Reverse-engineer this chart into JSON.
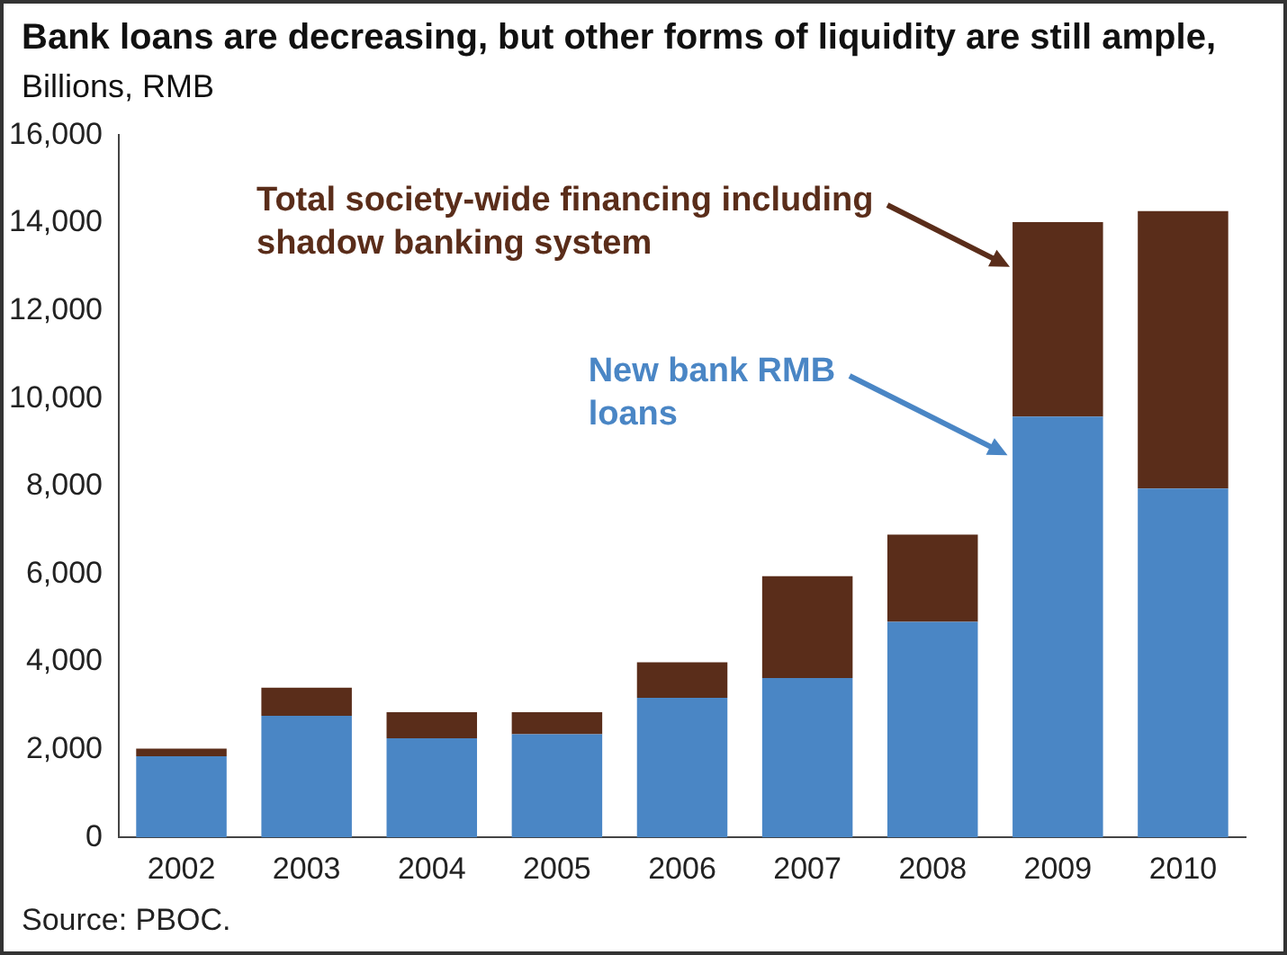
{
  "chart_data": {
    "type": "bar",
    "title": "Bank loans are decreasing, but other forms of liquidity are still ample,",
    "subtitle": "Billions, RMB",
    "categories": [
      "2002",
      "2003",
      "2004",
      "2005",
      "2006",
      "2007",
      "2008",
      "2009",
      "2010"
    ],
    "series": [
      {
        "name": "New bank RMB loans",
        "color": "#4a86c5",
        "values": [
          1850,
          2770,
          2260,
          2350,
          3180,
          3630,
          4910,
          9590,
          7950
        ]
      },
      {
        "name": "Total society-wide financing including shadow banking system",
        "color": "#5a2d1a",
        "values": [
          170,
          640,
          590,
          500,
          810,
          2320,
          1990,
          4430,
          6320
        ]
      }
    ],
    "stacked": true,
    "ylim": [
      0,
      16000
    ],
    "yticks": [
      0,
      {
        "value": 2000,
        "label": "2,000"
      },
      {
        "value": 4000,
        "label": "4,000"
      },
      {
        "value": 6000,
        "label": "6,000"
      },
      {
        "value": 8000,
        "label": "8,000"
      },
      {
        "value": 10000,
        "label": "10,000"
      },
      {
        "value": 12000,
        "label": "12,000"
      },
      {
        "value": 14000,
        "label": "14,000"
      },
      {
        "value": 16000,
        "label": "16,000"
      }
    ],
    "grid": false,
    "legend": "top",
    "annotations": [
      "Source: PBOC."
    ]
  }
}
